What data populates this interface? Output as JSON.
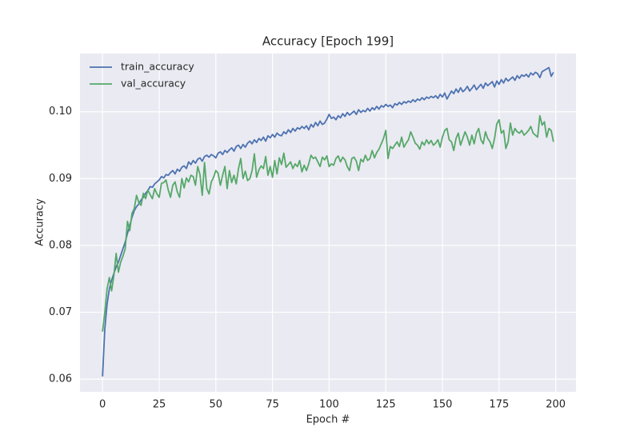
{
  "chart_data": {
    "type": "line",
    "title": "Accuracy [Epoch 199]",
    "x_label": "Epoch #",
    "y_label": "Accuracy",
    "x": [
      0,
      1,
      2,
      3,
      4,
      5,
      6,
      7,
      8,
      9,
      10,
      11,
      12,
      13,
      14,
      15,
      16,
      17,
      18,
      19,
      20,
      21,
      22,
      23,
      24,
      25,
      26,
      27,
      28,
      29,
      30,
      31,
      32,
      33,
      34,
      35,
      36,
      37,
      38,
      39,
      40,
      41,
      42,
      43,
      44,
      45,
      46,
      47,
      48,
      49,
      50,
      51,
      52,
      53,
      54,
      55,
      56,
      57,
      58,
      59,
      60,
      61,
      62,
      63,
      64,
      65,
      66,
      67,
      68,
      69,
      70,
      71,
      72,
      73,
      74,
      75,
      76,
      77,
      78,
      79,
      80,
      81,
      82,
      83,
      84,
      85,
      86,
      87,
      88,
      89,
      90,
      91,
      92,
      93,
      94,
      95,
      96,
      97,
      98,
      99,
      100,
      101,
      102,
      103,
      104,
      105,
      106,
      107,
      108,
      109,
      110,
      111,
      112,
      113,
      114,
      115,
      116,
      117,
      118,
      119,
      120,
      121,
      122,
      123,
      124,
      125,
      126,
      127,
      128,
      129,
      130,
      131,
      132,
      133,
      134,
      135,
      136,
      137,
      138,
      139,
      140,
      141,
      142,
      143,
      144,
      145,
      146,
      147,
      148,
      149,
      150,
      151,
      152,
      153,
      154,
      155,
      156,
      157,
      158,
      159,
      160,
      161,
      162,
      163,
      164,
      165,
      166,
      167,
      168,
      169,
      170,
      171,
      172,
      173,
      174,
      175,
      176,
      177,
      178,
      179,
      180,
      181,
      182,
      183,
      184,
      185,
      186,
      187,
      188,
      189,
      190,
      191,
      192,
      193,
      194,
      195,
      196,
      197,
      198,
      199
    ],
    "series": [
      {
        "name": "train_accuracy",
        "color": "#4c72b0",
        "values": [
          0.0604,
          0.0675,
          0.0712,
          0.0735,
          0.0748,
          0.0758,
          0.0768,
          0.0775,
          0.0785,
          0.0795,
          0.0805,
          0.0818,
          0.083,
          0.0842,
          0.0852,
          0.0858,
          0.0862,
          0.0868,
          0.0872,
          0.0878,
          0.0882,
          0.0888,
          0.0887,
          0.0892,
          0.0895,
          0.0898,
          0.0903,
          0.0901,
          0.0906,
          0.0905,
          0.0909,
          0.0912,
          0.0907,
          0.0914,
          0.0911,
          0.0917,
          0.0919,
          0.0915,
          0.0925,
          0.0921,
          0.0927,
          0.0923,
          0.0929,
          0.0931,
          0.0926,
          0.0933,
          0.0935,
          0.0932,
          0.0936,
          0.0934,
          0.0931,
          0.0938,
          0.094,
          0.0936,
          0.0942,
          0.0939,
          0.0943,
          0.0946,
          0.0941,
          0.0948,
          0.095,
          0.0945,
          0.0951,
          0.0947,
          0.0953,
          0.0956,
          0.0952,
          0.0958,
          0.0954,
          0.096,
          0.0957,
          0.0962,
          0.0956,
          0.0964,
          0.0961,
          0.0966,
          0.0962,
          0.0968,
          0.0965,
          0.0964,
          0.097,
          0.0967,
          0.0973,
          0.0969,
          0.0975,
          0.0971,
          0.0976,
          0.0974,
          0.0978,
          0.0975,
          0.0979,
          0.0973,
          0.0981,
          0.0977,
          0.0984,
          0.0979,
          0.0986,
          0.0981,
          0.0983,
          0.0989,
          0.0996,
          0.099,
          0.0992,
          0.0988,
          0.0994,
          0.0991,
          0.0997,
          0.0993,
          0.0999,
          0.0995,
          0.0998,
          0.1001,
          0.0996,
          0.1003,
          0.0999,
          0.1002,
          0.1,
          0.1005,
          0.1001,
          0.1006,
          0.1003,
          0.1008,
          0.1004,
          0.1009,
          0.1007,
          0.1011,
          0.1008,
          0.101,
          0.1006,
          0.1012,
          0.101,
          0.1014,
          0.1011,
          0.1015,
          0.1013,
          0.1016,
          0.1014,
          0.1018,
          0.1015,
          0.1019,
          0.1017,
          0.1021,
          0.1018,
          0.1022,
          0.102,
          0.1023,
          0.1021,
          0.1024,
          0.102,
          0.1026,
          0.1022,
          0.1028,
          0.1019,
          0.1025,
          0.1031,
          0.1027,
          0.1034,
          0.1029,
          0.1036,
          0.103,
          0.1033,
          0.1038,
          0.1031,
          0.1035,
          0.104,
          0.1033,
          0.1037,
          0.1041,
          0.1035,
          0.1043,
          0.1039,
          0.1042,
          0.1045,
          0.1037,
          0.1046,
          0.1041,
          0.1048,
          0.1043,
          0.105,
          0.1046,
          0.1049,
          0.1052,
          0.1047,
          0.1054,
          0.105,
          0.1055,
          0.1053,
          0.1056,
          0.1052,
          0.1058,
          0.1055,
          0.1059,
          0.1057,
          0.1051,
          0.106,
          0.1062,
          0.1064,
          0.1066,
          0.1053,
          0.1059
        ]
      },
      {
        "name": "val_accuracy",
        "color": "#55a868",
        "values": [
          0.0671,
          0.07,
          0.0735,
          0.0752,
          0.0732,
          0.0755,
          0.0788,
          0.076,
          0.0775,
          0.0784,
          0.0795,
          0.0836,
          0.0822,
          0.0848,
          0.0855,
          0.0875,
          0.0864,
          0.086,
          0.0878,
          0.087,
          0.0883,
          0.0876,
          0.087,
          0.0885,
          0.0877,
          0.0872,
          0.0893,
          0.0894,
          0.0898,
          0.0883,
          0.0872,
          0.089,
          0.0895,
          0.088,
          0.0872,
          0.09,
          0.0886,
          0.0901,
          0.0895,
          0.0905,
          0.0903,
          0.089,
          0.0918,
          0.0906,
          0.0875,
          0.0924,
          0.0885,
          0.0877,
          0.0895,
          0.0902,
          0.0912,
          0.0908,
          0.089,
          0.0905,
          0.0918,
          0.0885,
          0.0912,
          0.0894,
          0.0905,
          0.0892,
          0.0915,
          0.093,
          0.09,
          0.0911,
          0.0897,
          0.09,
          0.0912,
          0.0937,
          0.0902,
          0.0913,
          0.0919,
          0.0915,
          0.0933,
          0.0905,
          0.0918,
          0.0902,
          0.0927,
          0.0907,
          0.0931,
          0.0921,
          0.0938,
          0.0917,
          0.0921,
          0.0925,
          0.0915,
          0.0922,
          0.0918,
          0.0927,
          0.091,
          0.092,
          0.0912,
          0.0922,
          0.0935,
          0.093,
          0.0932,
          0.0925,
          0.0918,
          0.0932,
          0.0928,
          0.0934,
          0.0918,
          0.0922,
          0.092,
          0.093,
          0.0934,
          0.0925,
          0.0932,
          0.0928,
          0.0918,
          0.0912,
          0.093,
          0.0932,
          0.0926,
          0.0912,
          0.0929,
          0.0925,
          0.0935,
          0.0927,
          0.093,
          0.0942,
          0.0931,
          0.0939,
          0.0944,
          0.0952,
          0.096,
          0.0972,
          0.093,
          0.0948,
          0.0945,
          0.095,
          0.0955,
          0.0948,
          0.0962,
          0.0947,
          0.0953,
          0.0958,
          0.097,
          0.0962,
          0.0953,
          0.095,
          0.0944,
          0.0955,
          0.095,
          0.0958,
          0.0952,
          0.0957,
          0.095,
          0.0953,
          0.0958,
          0.0947,
          0.0962,
          0.0972,
          0.0975,
          0.0958,
          0.0955,
          0.0942,
          0.096,
          0.0968,
          0.095,
          0.096,
          0.097,
          0.0962,
          0.095,
          0.0965,
          0.0952,
          0.0968,
          0.0975,
          0.0958,
          0.0952,
          0.097,
          0.096,
          0.0955,
          0.0945,
          0.096,
          0.0982,
          0.0988,
          0.0968,
          0.0972,
          0.0945,
          0.0955,
          0.0983,
          0.0965,
          0.0975,
          0.097,
          0.0968,
          0.0972,
          0.0965,
          0.0968,
          0.0972,
          0.0978,
          0.0968,
          0.0965,
          0.0962,
          0.0994,
          0.098,
          0.0985,
          0.0962,
          0.0975,
          0.0972,
          0.0955
        ]
      }
    ],
    "xlim": [
      -9.95,
      208.95
    ],
    "ylim": [
      0.0581,
      0.1087
    ],
    "xticks": [
      0,
      25,
      50,
      75,
      100,
      125,
      150,
      175,
      200
    ],
    "yticks": [
      0.06,
      0.07,
      0.08,
      0.09,
      {
        "value": 0.1,
        "label": "0.10"
      }
    ],
    "grid": true,
    "legend": "upper-left"
  }
}
